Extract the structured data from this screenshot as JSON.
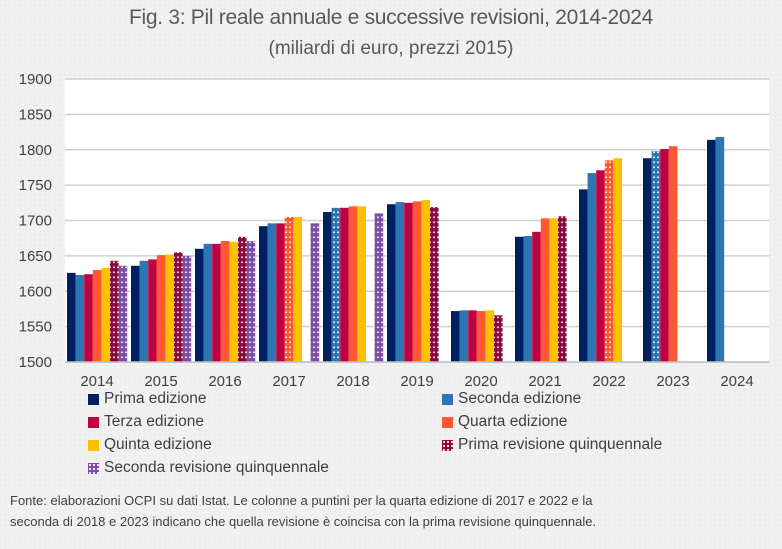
{
  "chart_data": {
    "type": "bar",
    "title": "Fig. 3: Pil reale annuale e successive revisioni, 2014-2024",
    "subtitle": "(miliardi di euro, prezzi 2015)",
    "xlabel": "",
    "ylabel": "",
    "ylim": [
      1500,
      1900
    ],
    "yticks": [
      "1500",
      "1550",
      "1600",
      "1650",
      "1700",
      "1750",
      "1800",
      "1850",
      "1900"
    ],
    "ytick_values": [
      1500,
      1550,
      1600,
      1650,
      1700,
      1750,
      1800,
      1850,
      1900
    ],
    "grid": true,
    "legend_position": "bottom",
    "categories": [
      "2014",
      "2015",
      "2016",
      "2017",
      "2018",
      "2019",
      "2020",
      "2021",
      "2022",
      "2023",
      "2024"
    ],
    "series": [
      {
        "name": "Prima edizione",
        "color": "#002060",
        "pattern": "solid",
        "values": [
          1626,
          1636,
          1660,
          1692,
          1712,
          1723,
          1572,
          1677,
          1744,
          1788,
          1814
        ]
      },
      {
        "name": "Seconda edizione",
        "color": "#2e75b6",
        "pattern": "solid",
        "values": [
          1623,
          1643,
          1667,
          1696,
          1718,
          1726,
          1573,
          1678,
          1767,
          1798,
          1818
        ],
        "dotted_categories": [
          "2018",
          "2023"
        ]
      },
      {
        "name": "Terza edizione",
        "color": "#c00040",
        "pattern": "solid",
        "values": [
          1624,
          1645,
          1667,
          1696,
          1718,
          1725,
          1573,
          1684,
          1771,
          1801,
          null
        ]
      },
      {
        "name": "Quarta edizione",
        "color": "#ff5733",
        "pattern": "solid",
        "values": [
          1630,
          1651,
          1671,
          1705,
          1720,
          1727,
          1572,
          1703,
          1785,
          1805,
          null
        ],
        "dotted_categories": [
          "2017",
          "2022"
        ]
      },
      {
        "name": "Quinta edizione",
        "color": "#ffc000",
        "pattern": "solid",
        "values": [
          1633,
          1652,
          1670,
          1705,
          1720,
          1729,
          1573,
          1703,
          1788,
          null,
          null
        ]
      },
      {
        "name": "Prima revisione quinquennale",
        "color": "#8b0a3c",
        "pattern": "dotted",
        "values": [
          1643,
          1655,
          1677,
          null,
          null,
          1719,
          1566,
          1706,
          null,
          null,
          null
        ]
      },
      {
        "name": "Seconda revisione quinquennale",
        "color": "#7a4fa3",
        "pattern": "dotted",
        "values": [
          1636,
          1650,
          1671,
          1696,
          1710,
          null,
          null,
          null,
          null,
          null,
          null
        ]
      }
    ]
  },
  "legend": {
    "items": [
      {
        "label": "Prima edizione",
        "color": "#002060",
        "pattern": "solid"
      },
      {
        "label": "Seconda edizione",
        "color": "#2e75b6",
        "pattern": "solid"
      },
      {
        "label": "Terza edizione",
        "color": "#c00040",
        "pattern": "solid"
      },
      {
        "label": "Quarta edizione",
        "color": "#ff5733",
        "pattern": "solid"
      },
      {
        "label": "Quinta edizione",
        "color": "#ffc000",
        "pattern": "solid"
      },
      {
        "label": "Prima revisione quinquennale",
        "color": "#8b0a3c",
        "pattern": "dotted"
      },
      {
        "label": "Seconda revisione quinquennale",
        "color": "#7a4fa3",
        "pattern": "dotted"
      }
    ]
  },
  "footnote": {
    "line1": "Fonte: elaborazioni OCPI su dati Istat. Le colonne a puntini per la quarta edizione di 2017 e 2022 e la",
    "line2": "seconda di 2018 e 2023 indicano che quella revisione è coincisa con la prima revisione quinquennale."
  }
}
